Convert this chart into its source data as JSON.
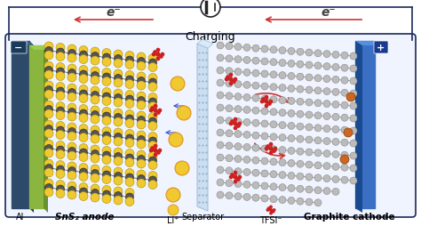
{
  "title_top": "Charging",
  "electron_label": "e⁻",
  "minus_label": "−",
  "plus_label": "+",
  "al_label": "Al",
  "anode_label": "SnS₂ anode",
  "separator_label": "Separator",
  "li_label": "Li⁺",
  "tfsi_label": "TFSI⁻",
  "cathode_label": "Graphite cathode",
  "electrode_color_left": "#2d4a6b",
  "electrode_color_right": "#3a6fc4",
  "green_layer": "#8ab640",
  "separator_color": "#c8ddf0",
  "separator_edge": "#a0bcd8",
  "yellow_atom": "#f0c830",
  "orange_atom": "#e09020",
  "gray_atom": "#909090",
  "dark_gray_atom": "#555555",
  "red_atom": "#cc2020",
  "white_atom": "#cccccc",
  "arrow_color": "#cc3333",
  "electron_arrow_color": "#cc3333",
  "blue_arrow_color": "#3355cc",
  "line_color": "#1a2a5a",
  "battery_color": "#222222",
  "box_bg": "#f0f4ff"
}
